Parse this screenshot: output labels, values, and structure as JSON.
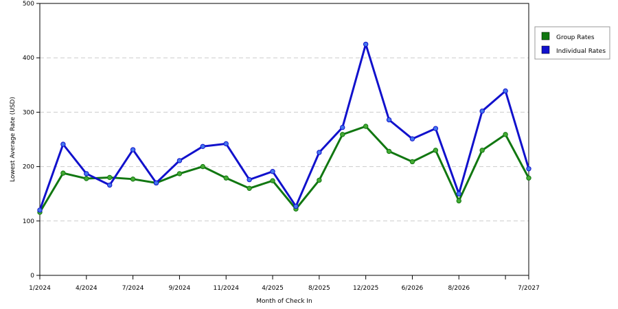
{
  "chart_data": {
    "type": "line",
    "xlabel": "Month of Check In",
    "ylabel": "Lowest Average Rate (USD)",
    "ylim": [
      0,
      500
    ],
    "yticks": [
      0,
      100,
      200,
      300,
      400,
      500
    ],
    "grid": "horizontal dashed",
    "legend_position": "right",
    "x_tick_labels": [
      "1/2024",
      "4/2024",
      "7/2024",
      "9/2024",
      "11/2024",
      "4/2025",
      "8/2025",
      "12/2025",
      "6/2026",
      "8/2026",
      "",
      "7/2027"
    ],
    "x_tick_index": [
      0,
      2,
      4,
      6,
      8,
      10,
      12,
      14,
      16,
      18,
      20,
      21
    ],
    "point_count": 22,
    "series": [
      {
        "name": "Group Rates",
        "color": "#117711",
        "marker_color": "#44aa33",
        "values": [
          116,
          188,
          178,
          180,
          177,
          170,
          187,
          200,
          179,
          160,
          174,
          122,
          175,
          259,
          274,
          228,
          209,
          230,
          137,
          230,
          259,
          179
        ]
      },
      {
        "name": "Individual Rates",
        "color": "#1111cc",
        "marker_color": "#4477ee",
        "values": [
          120,
          241,
          187,
          166,
          231,
          170,
          211,
          237,
          242,
          176,
          191,
          127,
          226,
          272,
          425,
          286,
          251,
          270,
          150,
          302,
          339,
          196
        ]
      }
    ]
  }
}
